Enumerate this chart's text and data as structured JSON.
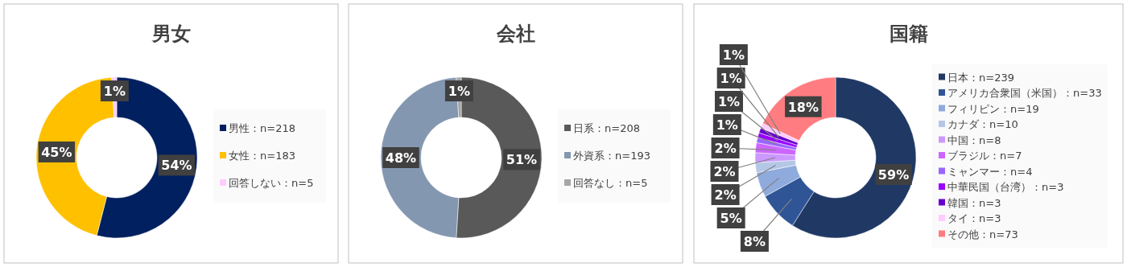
{
  "chart_data": [
    {
      "type": "donut",
      "title": "男女",
      "legend": "right",
      "categories": [
        "男性：n=218",
        "女性：n=183",
        "回答しない：n=5"
      ],
      "values": [
        54,
        45,
        1
      ],
      "colors": [
        "#002060",
        "#ffc000",
        "#ffccff"
      ],
      "value_labels": [
        "54%",
        "45%",
        "1%"
      ]
    },
    {
      "type": "donut",
      "title": "会社",
      "legend": "right",
      "categories": [
        "日系：n=208",
        "外資系：n=193",
        "回答なし：n=5"
      ],
      "values": [
        51,
        48,
        1
      ],
      "colors": [
        "#595959",
        "#8497b0",
        "#a6a6a6"
      ],
      "value_labels": [
        "51%",
        "48%",
        "1%"
      ]
    },
    {
      "type": "donut",
      "title": "国籍",
      "legend": "right",
      "categories": [
        "日本：n=239",
        "アメリカ合衆国（米国）：n=33",
        "フィリピン：n=19",
        "カナダ：n=10",
        "中国：n=8",
        "ブラジル：n=7",
        "ミャンマー：n=4",
        "中華民国（台湾）：n=3",
        "韓国：n=3",
        "タイ：n=3",
        "その他：n=73"
      ],
      "values": [
        59,
        8,
        5,
        2,
        2,
        2,
        1,
        1,
        1,
        1,
        18
      ],
      "colors": [
        "#203864",
        "#2f5597",
        "#8faadc",
        "#b4c7e7",
        "#cc99ff",
        "#cc66ff",
        "#9966ff",
        "#9900ff",
        "#6600cc",
        "#ffccff",
        "#ff7c80"
      ],
      "value_labels": [
        "59%",
        "8%",
        "5%",
        "2%",
        "2%",
        "2%",
        "1%",
        "1%",
        "1%",
        "1%",
        "18%"
      ]
    }
  ]
}
